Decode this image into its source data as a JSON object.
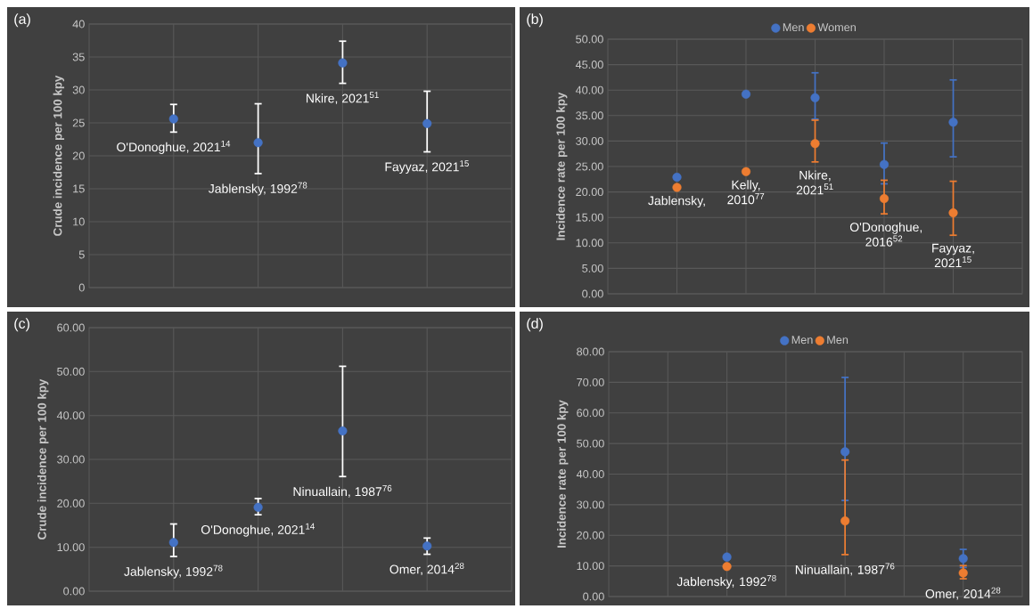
{
  "chart_data": [
    {
      "type": "scatter",
      "title": "(a)",
      "ylabel": "Crude incidence per 100 kpy",
      "categories": [
        null,
        null,
        null,
        null
      ],
      "values": [
        25.6,
        22.0,
        34.1,
        24.9
      ],
      "color": "#4472c4",
      "errors": [
        [
          23.6,
          27.8
        ],
        [
          17.3,
          27.9
        ],
        [
          31.0,
          37.4
        ],
        [
          20.6,
          29.8
        ]
      ],
      "ylim": [
        0,
        40
      ],
      "yticks": [
        0,
        5,
        10,
        15,
        20,
        25,
        30,
        35,
        40
      ],
      "tick_labels": "y",
      "grid": true,
      "marker": "circle",
      "annotations": [
        "O'Donoghue, 2021$^{14}$",
        "Jablensky, 1992$^{78}$",
        "Nkire, 2021$^{51}$",
        "Fayyaz, 2021$^{15}$"
      ]
    },
    {
      "type": "scatter",
      "title": "(b)",
      "ylabel": "Incidence rate per 100 kpy",
      "categories": [
        null,
        null,
        null,
        null,
        null
      ],
      "series": [
        {
          "name": "Men",
          "color": "#4472c4",
          "values": [
            22.9,
            39.2,
            38.5,
            25.4,
            33.7
          ],
          "errors": [
            null,
            null,
            [
              34.3,
              43.4
            ],
            [
              21.6,
              29.6
            ],
            [
              26.9,
              42.0
            ]
          ]
        },
        {
          "name": "Women",
          "color": "#ed7d31",
          "values": [
            20.9,
            24.0,
            29.5,
            18.7,
            15.9
          ],
          "errors": [
            null,
            null,
            [
              25.9,
              34.1
            ],
            [
              15.7,
              22.3
            ],
            [
              11.5,
              22.1
            ]
          ]
        }
      ],
      "ylim": [
        0,
        50
      ],
      "yticks": [
        {
          "value": 0,
          "label": "0.00"
        },
        {
          "value": 5,
          "label": "5.00"
        },
        {
          "value": 10,
          "label": "10.00"
        },
        {
          "value": 15,
          "label": "15.00"
        },
        {
          "value": 20,
          "label": "20.00"
        },
        {
          "value": 25,
          "label": "25.00"
        },
        {
          "value": 30,
          "label": "30.00"
        },
        {
          "value": 35,
          "label": "35.00"
        },
        {
          "value": 40,
          "label": "40.00"
        },
        {
          "value": 45,
          "label": "45.00"
        },
        {
          "value": 50,
          "label": "50.00"
        }
      ],
      "tick_labels": "y",
      "grid": true,
      "marker": "circle",
      "legend": "top",
      "annotations": [
        "Jablensky,",
        "Kelly, 2010$^{77}$",
        "Nkire, 2021$^{51}$",
        "O'Donoghue, 2016$^{52}$",
        "Fayyaz, 2021$^{15}$"
      ]
    },
    {
      "type": "scatter",
      "title": "(c)",
      "ylabel": "Crude incidence per 100 kpy",
      "categories": [
        null,
        null,
        null,
        null
      ],
      "values": [
        11.1,
        19.1,
        36.5,
        10.3
      ],
      "color": "#4472c4",
      "errors": [
        [
          7.9,
          15.3
        ],
        [
          17.4,
          21.1
        ],
        [
          26.1,
          51.2
        ],
        [
          8.4,
          12.1
        ]
      ],
      "ylim": [
        0,
        60
      ],
      "yticks": [
        {
          "value": 0,
          "label": "0.00"
        },
        {
          "value": 10,
          "label": "10.00"
        },
        {
          "value": 20,
          "label": "20.00"
        },
        {
          "value": 30,
          "label": "30.00"
        },
        {
          "value": 40,
          "label": "40.00"
        },
        {
          "value": 50,
          "label": "50.00"
        },
        {
          "value": 60,
          "label": "60.00"
        }
      ],
      "tick_labels": "y",
      "grid": true,
      "marker": "circle",
      "annotations": [
        "Jablensky, 1992$^{78}$",
        "O'Donoghue, 2021$^{14}$",
        "Ninuallain, 1987$^{76}$",
        "Omer, 2014$^{28}$"
      ]
    },
    {
      "type": "scatter",
      "title": "(d)",
      "ylabel": "Incidence rate per 100 kpy",
      "categories": [
        null,
        null,
        null,
        null,
        null,
        null
      ],
      "series": [
        {
          "name": "Men",
          "color": "#4472c4",
          "values": [
            null,
            12.9,
            null,
            47.3,
            null,
            12.4
          ],
          "errors": [
            null,
            null,
            null,
            [
              31.4,
              71.6
            ],
            null,
            [
              9.5,
              15.4
            ]
          ]
        },
        {
          "name": "Men",
          "color": "#ed7d31",
          "values": [
            null,
            9.8,
            null,
            24.7,
            null,
            7.7
          ],
          "errors": [
            null,
            null,
            null,
            [
              13.7,
              44.6
            ],
            null,
            [
              5.8,
              10.1
            ]
          ]
        }
      ],
      "ylim": [
        0,
        80
      ],
      "yticks": [
        {
          "value": 0,
          "label": "0.00"
        },
        {
          "value": 10,
          "label": "10.00"
        },
        {
          "value": 20,
          "label": "20.00"
        },
        {
          "value": 30,
          "label": "30.00"
        },
        {
          "value": 40,
          "label": "40.00"
        },
        {
          "value": 50,
          "label": "50.00"
        },
        {
          "value": 60,
          "label": "60.00"
        },
        {
          "value": 70,
          "label": "70.00"
        },
        {
          "value": 80,
          "label": "80.00"
        }
      ],
      "tick_labels": "y",
      "grid": true,
      "marker": "circle",
      "legend": "top",
      "annotations": [
        "Jablensky, 1992$^{78}$",
        "Ninuallain, 1987$^{76}$",
        "Omer, 2014$^{28}$"
      ]
    }
  ]
}
